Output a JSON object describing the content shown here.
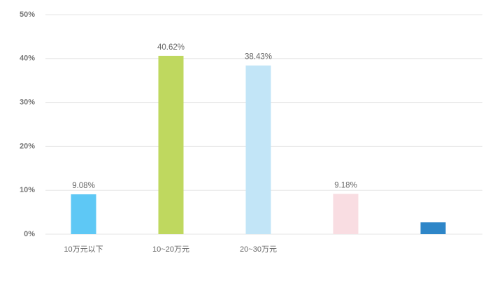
{
  "chart_data": {
    "type": "bar",
    "categories": [
      "10万元以下",
      "10~20万元",
      "20~30万元",
      null,
      null
    ],
    "values": [
      9.08,
      40.62,
      38.43,
      9.18,
      2.69
    ],
    "value_labels": [
      "9.08%",
      "40.62%",
      "38.43%",
      "9.18%",
      null
    ],
    "colors": [
      "#5ec8f5",
      "#bfd85f",
      "#c2e5f7",
      "#f9dde2",
      "#2e86c8"
    ],
    "ylim": [
      0,
      50
    ],
    "yticks": [
      {
        "value": 0,
        "label": "0%"
      },
      {
        "value": 10,
        "label": "10%"
      },
      {
        "value": 20,
        "label": "20%"
      },
      {
        "value": 30,
        "label": "30%"
      },
      {
        "value": 40,
        "label": "40%"
      },
      {
        "value": 50,
        "label": "50%"
      }
    ],
    "grid": true
  }
}
